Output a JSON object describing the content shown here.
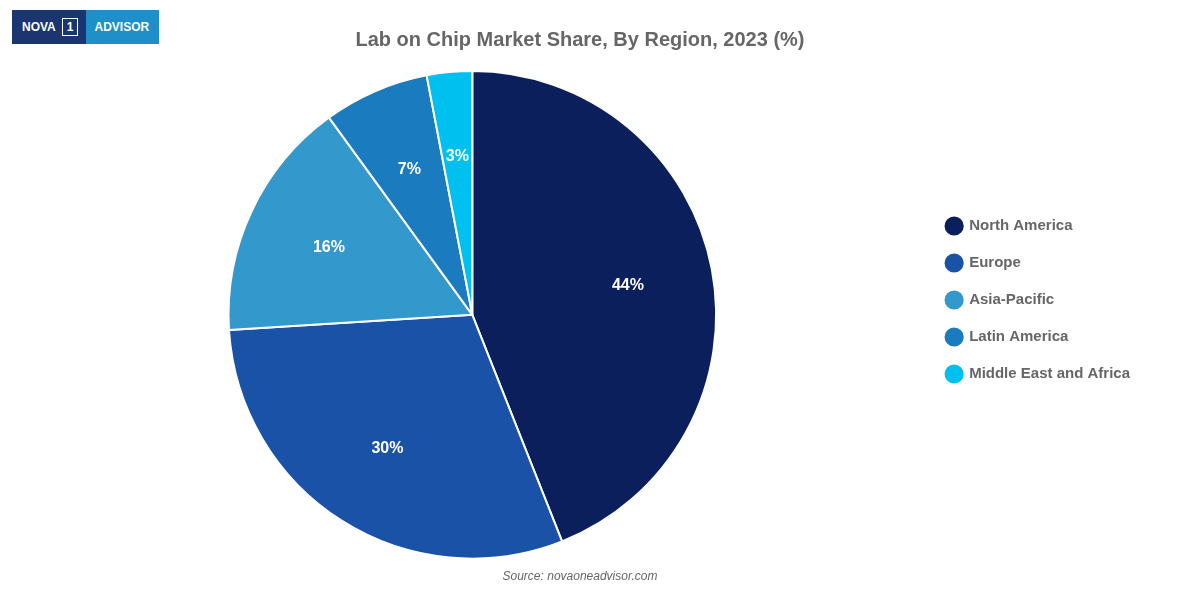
{
  "chart_data": {
    "type": "pie",
    "title": "Lab on Chip Market Share, By Region, 2023 (%)",
    "categories": [
      "North America",
      "Europe",
      "Asia-Pacific",
      "Latin America",
      "Middle East and Africa"
    ],
    "values": [
      44,
      30,
      16,
      7,
      3
    ],
    "value_labels": [
      "44%",
      "30%",
      "16%",
      "7%",
      "3%"
    ],
    "colors": [
      "#0a1f5c",
      "#1a52a8",
      "#3399cc",
      "#1a7bbf",
      "#00c0f0"
    ],
    "data_labels": true,
    "legend": "right",
    "annotations": [
      "NOVA",
      "1",
      "ADVISOR",
      "Source: novaoneadvisor.com"
    ]
  }
}
